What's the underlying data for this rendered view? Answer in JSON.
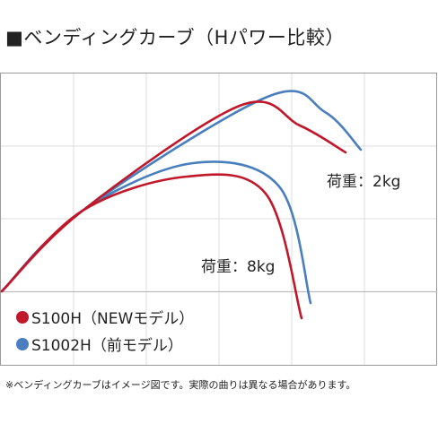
{
  "title": "■ベンディングカーブ（Hパワー比較）",
  "footnote": "※ベンディングカーブはイメージ図です。実際の曲りは異なる場合があります。",
  "chart_data": {
    "type": "line",
    "xlabel": "",
    "ylabel": "",
    "grid": true,
    "legend_placement": "bottom-left",
    "colors": {
      "S100H": "#c0182a",
      "S1002H": "#4a7fbd",
      "border": "#9a9a9a",
      "grid": "#dddddd",
      "baseline": "#bdbdbd"
    },
    "annotations": {
      "load_2kg": "荷重：2kg",
      "load_8kg": "荷重：8kg"
    },
    "series": [
      {
        "name": "S100H（NEWモデル）",
        "key": "S100H",
        "curves": [
          {
            "load": "2kg",
            "points": [
              [
                0,
                0
              ],
              [
                90,
                -90
              ],
              [
                265,
                -207
              ],
              [
                332,
                -185
              ],
              [
                383,
                -155
              ]
            ]
          },
          {
            "load": "8kg",
            "points": [
              [
                0,
                0
              ],
              [
                90,
                -90
              ],
              [
                206,
                -128
              ],
              [
                294,
                -109
              ],
              [
                334,
                30
              ]
            ]
          }
        ]
      },
      {
        "name": "S1002H（前モデル）",
        "key": "S1002H",
        "curves": [
          {
            "load": "2kg",
            "points": [
              [
                0,
                0
              ],
              [
                90,
                -90
              ],
              [
                296,
                -217
              ],
              [
                360,
                -200
              ],
              [
                400,
                -158
              ]
            ]
          },
          {
            "load": "8kg",
            "points": [
              [
                0,
                0
              ],
              [
                90,
                -90
              ],
              [
                213,
                -143
              ],
              [
                309,
                -117
              ],
              [
                344,
                13
              ]
            ]
          }
        ]
      }
    ]
  }
}
